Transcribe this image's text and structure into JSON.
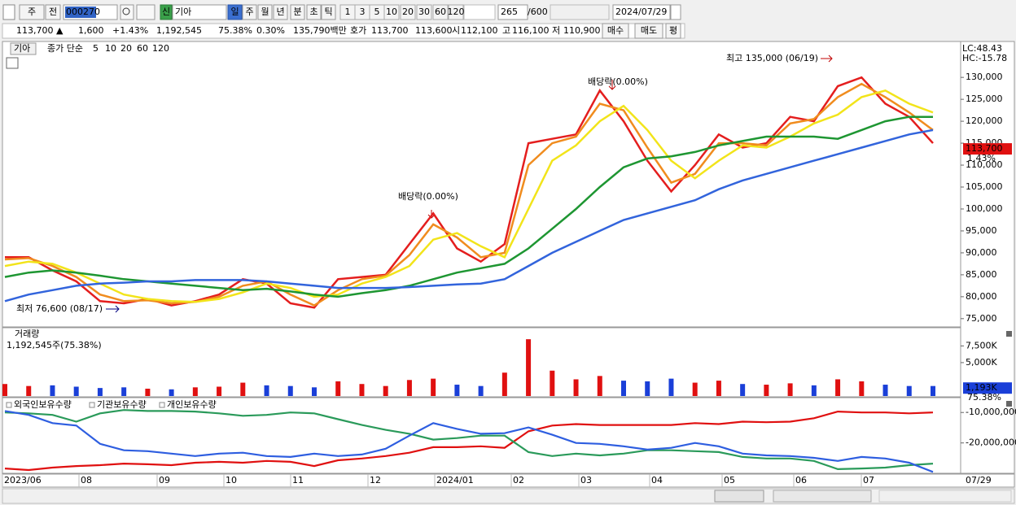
{
  "toolbar": {
    "period": "주",
    "mode": "전",
    "code": "000270",
    "new": "신",
    "name": "기아",
    "intervals": [
      "일",
      "주",
      "월",
      "년",
      "분",
      "초",
      "틱"
    ],
    "ticks": [
      "1",
      "3",
      "5",
      "10",
      "20",
      "30",
      "60",
      "120"
    ],
    "count": "265",
    "max": "/600",
    "date": "2024/07/29"
  },
  "quote": {
    "price": "113,700 ▲",
    "change": "1,600",
    "rate": "+1.43%",
    "volume": "1,192,545",
    "volume_ratio": "75.38%",
    "turnover": "0.30%",
    "amount": "135,790백만",
    "ask_label": "호가",
    "ask": "113,700",
    "bid": "113,600",
    "open_label": "시",
    "open": "112,100",
    "high_label": "고",
    "high": "116,100",
    "low_label": "저",
    "low": "110,900",
    "buy": "매수",
    "sell": "매도",
    "avg": "평"
  },
  "chart_data": [
    {
      "type": "line",
      "title": "기아",
      "legend_label": "종가 단순",
      "lc": "LC:48.43",
      "hc": "HC:-15.78",
      "series": [
        {
          "name": "5",
          "color": "#e41e1e",
          "values": [
            89000,
            89000,
            86000,
            83500,
            79000,
            78500,
            79500,
            78000,
            79000,
            80500,
            84000,
            83000,
            78500,
            77500,
            84000,
            84500,
            85000,
            92000,
            99000,
            91000,
            88000,
            92000,
            115000,
            116000,
            117000,
            127000,
            120000,
            111000,
            104000,
            110000,
            117000,
            114000,
            115000,
            121000,
            120000,
            128000,
            130000,
            124000,
            121000,
            115000
          ]
        },
        {
          "name": "10",
          "color": "#f08c1e",
          "values": [
            88500,
            88800,
            87000,
            84500,
            80500,
            79000,
            79200,
            78500,
            78800,
            80000,
            82500,
            83500,
            80500,
            78000,
            81500,
            84000,
            84800,
            89500,
            96500,
            93500,
            89000,
            90000,
            110000,
            115000,
            116500,
            124000,
            122500,
            114000,
            106000,
            108000,
            115000,
            115000,
            114500,
            119500,
            120500,
            125500,
            128500,
            125500,
            122000,
            118000
          ]
        },
        {
          "name": "20",
          "color": "#f2e41a",
          "values": [
            87000,
            88000,
            87500,
            85500,
            83000,
            80500,
            79500,
            79000,
            78800,
            79500,
            81000,
            83000,
            82000,
            80000,
            80500,
            83000,
            84500,
            87000,
            93000,
            94500,
            91500,
            89000,
            100000,
            111000,
            114500,
            120000,
            123500,
            118000,
            111000,
            107000,
            111000,
            114500,
            114000,
            116500,
            119500,
            121500,
            125500,
            127000,
            124000,
            122000
          ]
        },
        {
          "name": "60",
          "color": "#1e9632",
          "values": [
            84500,
            85500,
            86000,
            85500,
            84800,
            84000,
            83500,
            83000,
            82500,
            82000,
            81500,
            81800,
            81200,
            80500,
            80000,
            80800,
            81500,
            82500,
            84000,
            85500,
            86500,
            87500,
            91000,
            95500,
            100000,
            105000,
            109500,
            111500,
            112000,
            113000,
            114500,
            115500,
            116500,
            116500,
            116500,
            116000,
            118000,
            120000,
            121000,
            121000
          ]
        },
        {
          "name": "120",
          "color": "#3264dc",
          "values": [
            79000,
            80500,
            81500,
            82500,
            83000,
            83200,
            83500,
            83500,
            83800,
            83800,
            83800,
            83500,
            83000,
            82500,
            82000,
            82000,
            82000,
            82200,
            82500,
            82800,
            83000,
            84000,
            87000,
            90000,
            92500,
            95000,
            97500,
            99000,
            100500,
            102000,
            104500,
            106500,
            108000,
            109500,
            111000,
            112500,
            114000,
            115500,
            117000,
            118000
          ]
        }
      ],
      "ylim": [
        73300,
        138000
      ],
      "yticks": [
        {
          "value": 75000,
          "label": "75,000"
        },
        {
          "value": 80000,
          "label": "80,000"
        },
        {
          "value": 85000,
          "label": "85,000"
        },
        {
          "value": 90000,
          "label": "90,000"
        },
        {
          "value": 95000,
          "label": "95,000"
        },
        {
          "value": 100000,
          "label": "100,000"
        },
        {
          "value": 105000,
          "label": "105,000"
        },
        {
          "value": 110000,
          "label": "110,000"
        },
        {
          "value": 115000,
          "label": "115,000"
        },
        {
          "value": 120000,
          "label": "120,000"
        },
        {
          "value": 125000,
          "label": "125,000"
        },
        {
          "value": 130000,
          "label": "130,000"
        }
      ],
      "last": {
        "value": 113700,
        "label": "113,700"
      },
      "last_change": "1.43%",
      "annotations": [
        "최고 135,000 (06/19)",
        "배당락(0.00%)",
        "배당락(0.00%)",
        "최저 76,600 (08/17)"
      ]
    },
    {
      "type": "bar",
      "title": "거래량",
      "subtitle": "1,192,545주(75.38%)",
      "values": [
        1800,
        1500,
        1600,
        1400,
        1200,
        1300,
        1100,
        1000,
        1300,
        1400,
        2000,
        1600,
        1500,
        1300,
        2200,
        1800,
        1500,
        2400,
        2600,
        1700,
        1500,
        3500,
        8500,
        3800,
        2500,
        3000,
        2300,
        2200,
        2600,
        2000,
        2300,
        1800,
        1700,
        1900,
        1600,
        2500,
        2200,
        1700,
        1500,
        1500
      ],
      "up_color": "#e01010",
      "down_color": "#1a3fd8",
      "ylim": [
        0,
        10100
      ],
      "yticks": [
        {
          "value": 5000,
          "label": "5,000K"
        },
        {
          "value": 7500,
          "label": "7,500K"
        }
      ],
      "last": {
        "value": 1193,
        "label": "1,193K"
      },
      "last_ratio": "75.38%"
    },
    {
      "type": "line",
      "series": [
        {
          "name": "외국인보유수량",
          "color": "#e01010",
          "values": [
            -28400000,
            -28900000,
            -28100000,
            -27600000,
            -27300000,
            -26800000,
            -27000000,
            -27300000,
            -26500000,
            -26200000,
            -26500000,
            -25900000,
            -26200000,
            -27600000,
            -25700000,
            -25100000,
            -24300000,
            -23200000,
            -21400000,
            -21400000,
            -21100000,
            -21600000,
            -16200000,
            -14300000,
            -13800000,
            -14100000,
            -14100000,
            -14100000,
            -14100000,
            -13500000,
            -13800000,
            -13000000,
            -13200000,
            -13000000,
            -11900000,
            -9700000,
            -10000000,
            -10000000,
            -10300000,
            -10000000
          ]
        },
        {
          "name": "기관보유수량",
          "color": "#2a9a5a",
          "values": [
            -10000000,
            -10300000,
            -10800000,
            -13000000,
            -10300000,
            -9200000,
            -9500000,
            -9500000,
            -9700000,
            -10300000,
            -11100000,
            -10800000,
            -10000000,
            -10300000,
            -12200000,
            -14100000,
            -15700000,
            -17000000,
            -18900000,
            -18400000,
            -17600000,
            -17600000,
            -23000000,
            -24300000,
            -23500000,
            -24100000,
            -23500000,
            -22400000,
            -22400000,
            -22700000,
            -23000000,
            -24600000,
            -25100000,
            -25100000,
            -25900000,
            -28600000,
            -28400000,
            -28100000,
            -27300000,
            -26800000
          ]
        },
        {
          "name": "개인보유수량",
          "color": "#2e5ee0",
          "values": [
            -9500000,
            -10800000,
            -13500000,
            -14300000,
            -20300000,
            -22400000,
            -22700000,
            -23500000,
            -24300000,
            -23500000,
            -23200000,
            -24300000,
            -24600000,
            -23500000,
            -24300000,
            -23800000,
            -21900000,
            -17600000,
            -13500000,
            -15400000,
            -17000000,
            -16800000,
            -14900000,
            -17300000,
            -20000000,
            -20300000,
            -21100000,
            -22200000,
            -21600000,
            -20000000,
            -21100000,
            -23500000,
            -24100000,
            -24300000,
            -24900000,
            -25900000,
            -24600000,
            -25100000,
            -26500000,
            -29500000
          ]
        }
      ],
      "ylim": [
        -29700000,
        -5400000
      ],
      "yticks": [
        {
          "value": -10000000,
          "label": "-10,000,000"
        },
        {
          "value": -20000000,
          "label": "-20,000,000"
        }
      ]
    }
  ],
  "x_axis": {
    "labels": [
      "2023/06",
      "08",
      "09",
      "10",
      "11",
      "12",
      "2024/01",
      "02",
      "03",
      "04",
      "05",
      "06",
      "07"
    ],
    "end": "07/29"
  }
}
